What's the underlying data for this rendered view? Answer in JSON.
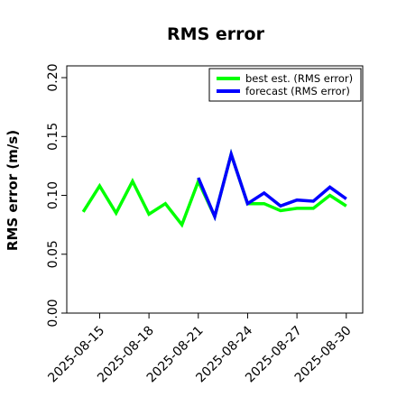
{
  "chart_data": {
    "type": "line",
    "title": "RMS error",
    "xlabel": "",
    "ylabel": "RMS error (m/s)",
    "ylim": [
      0,
      0.21
    ],
    "yticks": [
      "0.00",
      "0.05",
      "0.10",
      "0.15",
      "0.20"
    ],
    "ytick_values": [
      0,
      0.05,
      0.1,
      0.15,
      0.2
    ],
    "xlim": [
      "2025-08-13",
      "2025-08-31"
    ],
    "xticks": [
      "2025-08-15",
      "2025-08-18",
      "2025-08-21",
      "2025-08-24",
      "2025-08-27",
      "2025-08-30"
    ],
    "highlighted_xtick": "2025-08-21",
    "highlight_color": "#228B22",
    "grid": false,
    "legend_position": "top-right",
    "series": [
      {
        "name": "best est. (RMS error)",
        "color": "#00ff00",
        "x": [
          "2025-08-14",
          "2025-08-15",
          "2025-08-16",
          "2025-08-17",
          "2025-08-18",
          "2025-08-19",
          "2025-08-20",
          "2025-08-21",
          "2025-08-22",
          "2025-08-23",
          "2025-08-24",
          "2025-08-25",
          "2025-08-26",
          "2025-08-27",
          "2025-08-28",
          "2025-08-29",
          "2025-08-30"
        ],
        "values": [
          0.086,
          0.108,
          0.085,
          0.112,
          0.084,
          0.093,
          0.075,
          0.112,
          0.082,
          0.135,
          0.093,
          0.093,
          0.087,
          0.089,
          0.089,
          0.1,
          0.091
        ]
      },
      {
        "name": "forecast (RMS error)",
        "color": "#0000ff",
        "x": [
          "2025-08-21",
          "2025-08-22",
          "2025-08-23",
          "2025-08-24",
          "2025-08-25",
          "2025-08-26",
          "2025-08-27",
          "2025-08-28",
          "2025-08-29",
          "2025-08-30"
        ],
        "values": [
          0.115,
          0.082,
          0.135,
          0.093,
          0.102,
          0.091,
          0.096,
          0.095,
          0.107,
          0.097
        ]
      }
    ]
  }
}
